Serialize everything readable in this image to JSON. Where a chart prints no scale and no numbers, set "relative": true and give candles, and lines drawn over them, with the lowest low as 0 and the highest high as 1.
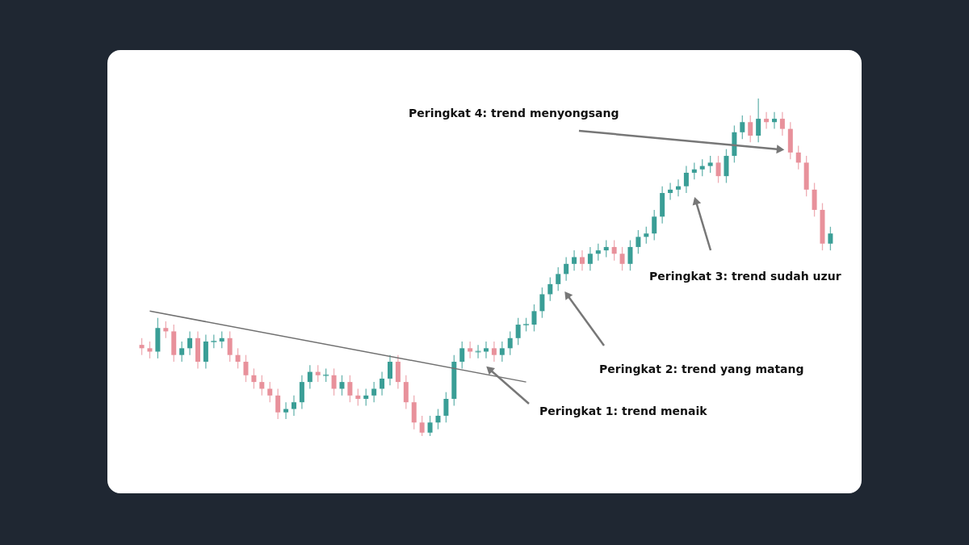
{
  "chart_data": {
    "type": "candlestick",
    "relative": true,
    "categories": [
      null,
      null,
      null,
      null,
      null,
      null,
      null,
      null,
      null,
      null,
      null,
      null,
      null,
      null,
      null,
      null,
      null,
      null,
      null,
      null,
      null,
      null,
      null,
      null,
      null,
      null,
      null,
      null,
      null,
      null,
      null,
      null,
      null,
      null,
      null,
      null,
      null,
      null,
      null,
      null,
      null,
      null,
      null,
      null,
      null,
      null,
      null,
      null,
      null,
      null,
      null,
      null,
      null,
      null,
      null,
      null,
      null,
      null,
      null,
      null,
      null,
      null,
      null,
      null,
      null,
      null,
      null,
      null,
      null,
      null,
      null,
      null,
      null,
      null,
      null,
      null,
      null,
      null,
      null,
      null,
      null,
      null,
      null,
      null,
      null,
      null,
      null
    ],
    "ohlc": [
      [
        0.27,
        0.29,
        0.24,
        0.26
      ],
      [
        0.26,
        0.28,
        0.23,
        0.25
      ],
      [
        0.25,
        0.35,
        0.23,
        0.32
      ],
      [
        0.32,
        0.34,
        0.29,
        0.31
      ],
      [
        0.31,
        0.33,
        0.22,
        0.24
      ],
      [
        0.24,
        0.28,
        0.22,
        0.26
      ],
      [
        0.26,
        0.31,
        0.24,
        0.29
      ],
      [
        0.29,
        0.31,
        0.2,
        0.22
      ],
      [
        0.22,
        0.3,
        0.2,
        0.28
      ],
      [
        0.28,
        0.3,
        0.26,
        0.28
      ],
      [
        0.28,
        0.31,
        0.26,
        0.29
      ],
      [
        0.29,
        0.31,
        0.22,
        0.24
      ],
      [
        0.24,
        0.26,
        0.2,
        0.22
      ],
      [
        0.22,
        0.24,
        0.16,
        0.18
      ],
      [
        0.18,
        0.2,
        0.14,
        0.16
      ],
      [
        0.16,
        0.18,
        0.12,
        0.14
      ],
      [
        0.14,
        0.16,
        0.1,
        0.12
      ],
      [
        0.12,
        0.14,
        0.05,
        0.07
      ],
      [
        0.07,
        0.1,
        0.05,
        0.08
      ],
      [
        0.08,
        0.12,
        0.06,
        0.1
      ],
      [
        0.1,
        0.18,
        0.08,
        0.16
      ],
      [
        0.16,
        0.21,
        0.14,
        0.19
      ],
      [
        0.19,
        0.21,
        0.16,
        0.18
      ],
      [
        0.18,
        0.2,
        0.16,
        0.18
      ],
      [
        0.18,
        0.2,
        0.12,
        0.14
      ],
      [
        0.14,
        0.18,
        0.12,
        0.16
      ],
      [
        0.16,
        0.18,
        0.1,
        0.12
      ],
      [
        0.12,
        0.14,
        0.09,
        0.11
      ],
      [
        0.11,
        0.14,
        0.09,
        0.12
      ],
      [
        0.12,
        0.16,
        0.1,
        0.14
      ],
      [
        0.14,
        0.19,
        0.12,
        0.17
      ],
      [
        0.17,
        0.24,
        0.15,
        0.22
      ],
      [
        0.22,
        0.24,
        0.14,
        0.16
      ],
      [
        0.16,
        0.18,
        0.08,
        0.1
      ],
      [
        0.1,
        0.12,
        0.02,
        0.04
      ],
      [
        0.04,
        0.06,
        0,
        0.01
      ],
      [
        0.01,
        0.06,
        0,
        0.04
      ],
      [
        0.04,
        0.08,
        0.02,
        0.06
      ],
      [
        0.06,
        0.13,
        0.04,
        0.11
      ],
      [
        0.11,
        0.24,
        0.09,
        0.22
      ],
      [
        0.22,
        0.28,
        0.2,
        0.26
      ],
      [
        0.26,
        0.28,
        0.23,
        0.25
      ],
      [
        0.25,
        0.27,
        0.23,
        0.25
      ],
      [
        0.25,
        0.28,
        0.23,
        0.26
      ],
      [
        0.26,
        0.28,
        0.22,
        0.24
      ],
      [
        0.24,
        0.28,
        0.22,
        0.26
      ],
      [
        0.26,
        0.31,
        0.24,
        0.29
      ],
      [
        0.29,
        0.35,
        0.27,
        0.33
      ],
      [
        0.33,
        0.35,
        0.31,
        0.33
      ],
      [
        0.33,
        0.39,
        0.31,
        0.37
      ],
      [
        0.37,
        0.44,
        0.35,
        0.42
      ],
      [
        0.42,
        0.47,
        0.4,
        0.45
      ],
      [
        0.45,
        0.5,
        0.43,
        0.48
      ],
      [
        0.48,
        0.53,
        0.46,
        0.51
      ],
      [
        0.51,
        0.55,
        0.49,
        0.53
      ],
      [
        0.53,
        0.55,
        0.49,
        0.51
      ],
      [
        0.51,
        0.56,
        0.49,
        0.54
      ],
      [
        0.54,
        0.57,
        0.52,
        0.55
      ],
      [
        0.55,
        0.58,
        0.53,
        0.56
      ],
      [
        0.56,
        0.58,
        0.52,
        0.54
      ],
      [
        0.54,
        0.56,
        0.49,
        0.51
      ],
      [
        0.51,
        0.58,
        0.49,
        0.56
      ],
      [
        0.56,
        0.61,
        0.54,
        0.59
      ],
      [
        0.59,
        0.62,
        0.57,
        0.6
      ],
      [
        0.6,
        0.67,
        0.58,
        0.65
      ],
      [
        0.65,
        0.74,
        0.63,
        0.72
      ],
      [
        0.72,
        0.75,
        0.7,
        0.73
      ],
      [
        0.73,
        0.76,
        0.71,
        0.74
      ],
      [
        0.74,
        0.8,
        0.72,
        0.78
      ],
      [
        0.78,
        0.81,
        0.76,
        0.79
      ],
      [
        0.79,
        0.82,
        0.77,
        0.8
      ],
      [
        0.8,
        0.83,
        0.78,
        0.81
      ],
      [
        0.81,
        0.83,
        0.75,
        0.77
      ],
      [
        0.77,
        0.85,
        0.75,
        0.83
      ],
      [
        0.83,
        0.92,
        0.81,
        0.9
      ],
      [
        0.9,
        0.95,
        0.88,
        0.93
      ],
      [
        0.93,
        0.95,
        0.87,
        0.89
      ],
      [
        0.89,
        1.0,
        0.87,
        0.94
      ],
      [
        0.94,
        0.96,
        0.91,
        0.93
      ],
      [
        0.93,
        0.96,
        0.91,
        0.94
      ],
      [
        0.94,
        0.96,
        0.89,
        0.91
      ],
      [
        0.91,
        0.93,
        0.82,
        0.84
      ],
      [
        0.84,
        0.86,
        0.79,
        0.81
      ],
      [
        0.81,
        0.83,
        0.71,
        0.73
      ],
      [
        0.73,
        0.75,
        0.65,
        0.67
      ],
      [
        0.67,
        0.69,
        0.55,
        0.57
      ],
      [
        0.57,
        0.62,
        0.55,
        0.6
      ]
    ],
    "colors": [
      "#e8919b",
      "#e8919b",
      "#3a9e96",
      "#e8919b",
      "#e8919b",
      "#3a9e96",
      "#3a9e96",
      "#e8919b",
      "#3a9e96",
      "#3a9e96",
      "#3a9e96",
      "#e8919b",
      "#e8919b",
      "#e8919b",
      "#e8919b",
      "#e8919b",
      "#e8919b",
      "#e8919b",
      "#3a9e96",
      "#3a9e96",
      "#3a9e96",
      "#3a9e96",
      "#e8919b",
      "#3a9e96",
      "#e8919b",
      "#3a9e96",
      "#e8919b",
      "#e8919b",
      "#3a9e96",
      "#3a9e96",
      "#3a9e96",
      "#3a9e96",
      "#e8919b",
      "#e8919b",
      "#e8919b",
      "#e8919b",
      "#3a9e96",
      "#3a9e96",
      "#3a9e96",
      "#3a9e96",
      "#3a9e96",
      "#e8919b",
      "#3a9e96",
      "#3a9e96",
      "#e8919b",
      "#3a9e96",
      "#3a9e96",
      "#3a9e96",
      "#3a9e96",
      "#3a9e96",
      "#3a9e96",
      "#3a9e96",
      "#3a9e96",
      "#3a9e96",
      "#3a9e96",
      "#e8919b",
      "#3a9e96",
      "#3a9e96",
      "#3a9e96",
      "#e8919b",
      "#e8919b",
      "#3a9e96",
      "#3a9e96",
      "#3a9e96",
      "#3a9e96",
      "#3a9e96",
      "#3a9e96",
      "#3a9e96",
      "#3a9e96",
      "#3a9e96",
      "#3a9e96",
      "#3a9e96",
      "#e8919b",
      "#3a9e96",
      "#3a9e96",
      "#3a9e96",
      "#e8919b",
      "#3a9e96",
      "#e8919b",
      "#3a9e96",
      "#e8919b",
      "#e8919b",
      "#e8919b",
      "#e8919b",
      "#e8919b",
      "#e8919b",
      "#3a9e96"
    ],
    "series": [
      {
        "type": "line",
        "values": [
          null,
          0.37,
          null,
          null,
          null,
          null,
          null,
          null,
          null,
          null,
          null,
          null,
          null,
          null,
          null,
          null,
          null,
          null,
          null,
          null,
          null,
          null,
          null,
          null,
          null,
          null,
          null,
          null,
          null,
          null,
          null,
          null,
          null,
          null,
          null,
          null,
          null,
          null,
          null,
          null,
          null,
          null,
          null,
          null,
          null,
          null,
          null,
          null,
          0.16,
          null,
          null,
          null,
          null,
          null,
          null,
          null,
          null,
          null,
          null,
          null,
          null,
          null,
          null,
          null,
          null,
          null,
          null,
          null,
          null,
          null,
          null,
          null,
          null,
          null,
          null,
          null,
          null,
          null,
          null,
          null,
          null,
          null,
          null,
          null,
          null,
          null,
          null
        ],
        "color": "#707070"
      }
    ],
    "annotations": [
      "Peringkat 4: trend menyongsang",
      "Peringkat 3: trend sudah uzur",
      "Peringkat 2: trend yang matang",
      "Peringkat 1: trend menaik"
    ]
  }
}
